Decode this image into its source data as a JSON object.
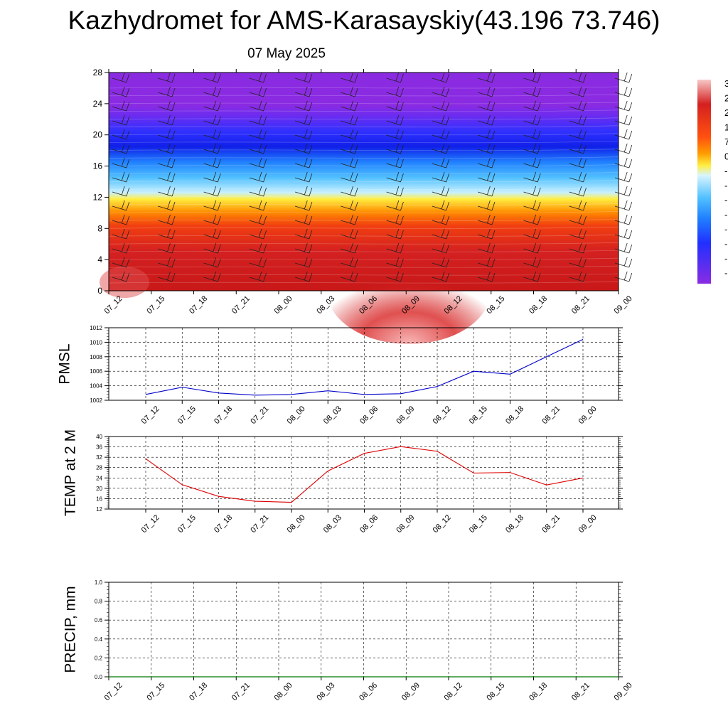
{
  "title": "Kazhydromet for AMS-Karasayskiy(43.196 73.746)",
  "subtitle": "07 May 2025",
  "chart_data": [
    {
      "type": "heatmap",
      "name": "cross-section",
      "ylim": [
        0,
        28
      ],
      "yticks": [
        0,
        4,
        8,
        12,
        16,
        20,
        24,
        28
      ],
      "x_labels": [
        "07_12",
        "07_15",
        "07_18",
        "07_21",
        "08_00",
        "08_03",
        "08_06",
        "08_09",
        "08_12",
        "08_15",
        "08_18",
        "08_21",
        "09_00"
      ],
      "colorbar_labels": [
        "3",
        "2",
        "2",
        "1",
        "7",
        "0",
        "-",
        "-",
        "-",
        "-",
        "-",
        "-",
        "-",
        "-"
      ],
      "colors": [
        "#8a2be2",
        "#2030ff",
        "#2090ff",
        "#a8e8ff",
        "#ffee40",
        "#ff8c00",
        "#d42020",
        "#f0a0a0"
      ],
      "field_sample": [
        {
          "height": 0,
          "value": 30
        },
        {
          "height": 8,
          "value": 17
        },
        {
          "height": 12,
          "value": 0
        },
        {
          "height": 16,
          "value": -14
        },
        {
          "height": 20,
          "value": -25
        },
        {
          "height": 24,
          "value": -30
        }
      ]
    },
    {
      "type": "line",
      "name": "pmsl",
      "ylabel": "PMSL",
      "ylim": [
        1002,
        1012
      ],
      "yticks": [
        1002,
        1004,
        1006,
        1008,
        1010,
        1012
      ],
      "categories": [
        "07_12",
        "07_15",
        "07_18",
        "07_21",
        "08_00",
        "08_03",
        "08_06",
        "08_09",
        "08_12",
        "08_15",
        "08_18",
        "08_21",
        "09_00"
      ],
      "values": [
        1002.8,
        1003.8,
        1003.0,
        1002.7,
        1002.8,
        1003.3,
        1002.8,
        1002.9,
        1003.9,
        1006.0,
        1005.6,
        1008.0,
        1010.4
      ],
      "color": "#0000cc"
    },
    {
      "type": "line",
      "name": "temp",
      "ylabel": "TEMP at 2 M",
      "ylim": [
        12,
        40
      ],
      "yticks": [
        12,
        16,
        20,
        24,
        28,
        32,
        36,
        40
      ],
      "categories": [
        "07_12",
        "07_15",
        "07_18",
        "07_21",
        "08_00",
        "08_03",
        "08_06",
        "08_09",
        "08_12",
        "08_15",
        "08_18",
        "08_21",
        "09_00"
      ],
      "values": [
        31.4,
        21.4,
        16.9,
        15.0,
        14.6,
        26.7,
        33.5,
        36.1,
        34.3,
        25.9,
        26.1,
        21.3,
        24.0
      ],
      "color": "#dd0000"
    },
    {
      "type": "line",
      "name": "precip",
      "ylabel": "PRECIP, mm",
      "ylim": [
        0.0,
        1.0
      ],
      "yticks": [
        "0.0",
        "0.2",
        "0.4",
        "0.6",
        "0.8",
        "1.0"
      ],
      "categories": [
        "07_12",
        "07_15",
        "07_18",
        "07_21",
        "08_00",
        "08_03",
        "08_06",
        "08_09",
        "08_12",
        "08_15",
        "08_18",
        "08_21",
        "09_00"
      ],
      "values": [
        0,
        0,
        0,
        0,
        0,
        0,
        0,
        0,
        0,
        0,
        0,
        0,
        0
      ],
      "color": "#007700"
    }
  ]
}
